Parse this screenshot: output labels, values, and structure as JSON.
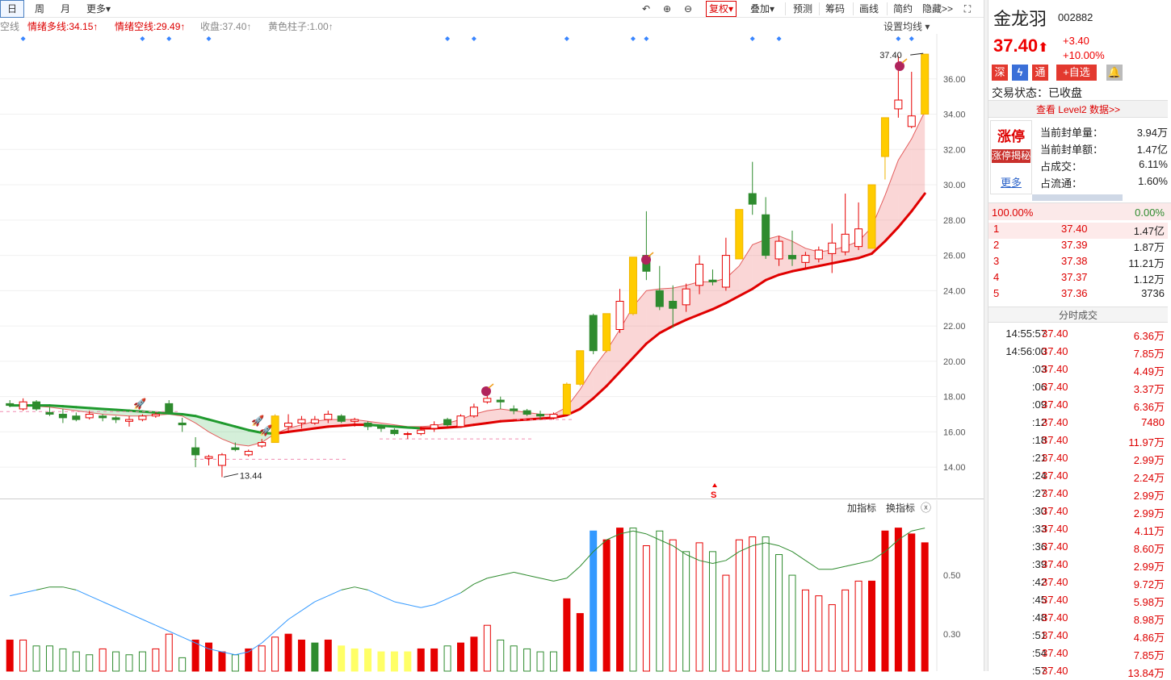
{
  "toolbar": {
    "periods": [
      {
        "label": "日",
        "active": true
      },
      {
        "label": "周"
      },
      {
        "label": "月"
      },
      {
        "label": "更多▾"
      }
    ],
    "fuquan": "复权▾",
    "overlay": "叠加▾",
    "tools": [
      "预测",
      "筹码",
      "画线",
      "简约",
      "隐藏>>"
    ]
  },
  "legend": {
    "items": [
      {
        "text": "空线",
        "color": "gray"
      },
      {
        "text": "情绪多线:34.15↑",
        "color": "red"
      },
      {
        "text": "情绪空线:29.49↑",
        "color": "red"
      },
      {
        "text": "收盘:37.40↑",
        "color": "gray"
      },
      {
        "text": "黄色柱子:1.00↑",
        "color": "gray"
      }
    ],
    "settings": "设置均线 ▾"
  },
  "chart_data": {
    "type": "candlestick",
    "y_axis_ticks": [
      "14.00",
      "16.00",
      "18.00",
      "20.00",
      "22.00",
      "24.00",
      "26.00",
      "28.00",
      "30.00",
      "32.00",
      "34.00",
      "36.00"
    ],
    "ylim": [
      12.5,
      38.0
    ],
    "candles": [
      {
        "o": 17.6,
        "h": 17.8,
        "l": 17.4,
        "c": 17.5
      },
      {
        "o": 17.3,
        "h": 17.9,
        "l": 17.2,
        "c": 17.7
      },
      {
        "o": 17.7,
        "h": 17.8,
        "l": 17.2,
        "c": 17.3
      },
      {
        "o": 17.1,
        "h": 17.4,
        "l": 16.9,
        "c": 17.0
      },
      {
        "o": 17.0,
        "h": 17.3,
        "l": 16.5,
        "c": 16.8
      },
      {
        "o": 16.9,
        "h": 17.1,
        "l": 16.6,
        "c": 16.7
      },
      {
        "o": 16.8,
        "h": 17.2,
        "l": 16.7,
        "c": 17.0
      },
      {
        "o": 16.9,
        "h": 17.0,
        "l": 16.6,
        "c": 16.8
      },
      {
        "o": 16.8,
        "h": 16.9,
        "l": 16.5,
        "c": 16.7
      },
      {
        "o": 16.6,
        "h": 16.9,
        "l": 16.3,
        "c": 16.7
      },
      {
        "o": 16.7,
        "h": 17.0,
        "l": 16.6,
        "c": 16.9
      },
      {
        "o": 16.9,
        "h": 17.1,
        "l": 16.8,
        "c": 17.0
      },
      {
        "o": 17.6,
        "h": 17.8,
        "l": 17.1,
        "c": 17.1
      },
      {
        "o": 16.5,
        "h": 16.8,
        "l": 16.0,
        "c": 16.4
      },
      {
        "o": 15.1,
        "h": 15.7,
        "l": 14.0,
        "c": 14.7
      },
      {
        "o": 14.5,
        "h": 14.7,
        "l": 14.1,
        "c": 14.6
      },
      {
        "o": 14.1,
        "h": 14.8,
        "l": 13.44,
        "c": 14.7
      },
      {
        "o": 15.1,
        "h": 15.4,
        "l": 14.9,
        "c": 15.0
      },
      {
        "o": 14.7,
        "h": 15.0,
        "l": 14.6,
        "c": 14.9
      },
      {
        "o": 15.2,
        "h": 15.6,
        "l": 15.1,
        "c": 15.4
      },
      {
        "o": 15.4,
        "h": 17.0,
        "l": 15.4,
        "c": 16.9
      },
      {
        "o": 16.3,
        "h": 17.0,
        "l": 16.0,
        "c": 16.5
      },
      {
        "o": 16.5,
        "h": 16.9,
        "l": 16.2,
        "c": 16.7
      },
      {
        "o": 16.5,
        "h": 16.9,
        "l": 16.4,
        "c": 16.7
      },
      {
        "o": 16.7,
        "h": 17.2,
        "l": 16.5,
        "c": 17.0
      },
      {
        "o": 16.9,
        "h": 17.0,
        "l": 16.5,
        "c": 16.6
      },
      {
        "o": 16.6,
        "h": 16.8,
        "l": 16.3,
        "c": 16.7
      },
      {
        "o": 16.5,
        "h": 16.6,
        "l": 16.1,
        "c": 16.3
      },
      {
        "o": 16.3,
        "h": 16.4,
        "l": 16.0,
        "c": 16.2
      },
      {
        "o": 16.1,
        "h": 16.2,
        "l": 15.8,
        "c": 15.9
      },
      {
        "o": 15.9,
        "h": 16.0,
        "l": 15.6,
        "c": 15.9
      },
      {
        "o": 15.9,
        "h": 16.3,
        "l": 15.8,
        "c": 16.1
      },
      {
        "o": 16.2,
        "h": 16.6,
        "l": 16.0,
        "c": 16.4
      },
      {
        "o": 16.7,
        "h": 16.8,
        "l": 16.3,
        "c": 16.4
      },
      {
        "o": 16.3,
        "h": 17.0,
        "l": 16.3,
        "c": 16.9
      },
      {
        "o": 16.9,
        "h": 17.6,
        "l": 16.8,
        "c": 17.4
      },
      {
        "o": 17.7,
        "h": 18.4,
        "l": 17.6,
        "c": 17.9
      },
      {
        "o": 17.8,
        "h": 18.0,
        "l": 17.3,
        "c": 17.7
      },
      {
        "o": 17.3,
        "h": 17.5,
        "l": 17.0,
        "c": 17.2
      },
      {
        "o": 17.2,
        "h": 17.3,
        "l": 16.9,
        "c": 17.0
      },
      {
        "o": 17.0,
        "h": 17.2,
        "l": 16.7,
        "c": 16.9
      },
      {
        "o": 16.8,
        "h": 17.1,
        "l": 16.7,
        "c": 17.0
      },
      {
        "o": 17.0,
        "h": 18.8,
        "l": 17.0,
        "c": 18.7
      },
      {
        "o": 18.7,
        "h": 20.6,
        "l": 18.6,
        "c": 20.6
      },
      {
        "o": 22.6,
        "h": 22.7,
        "l": 20.4,
        "c": 20.6
      },
      {
        "o": 20.6,
        "h": 22.7,
        "l": 20.5,
        "c": 22.7
      },
      {
        "o": 21.8,
        "h": 24.1,
        "l": 21.6,
        "c": 23.4
      },
      {
        "o": 22.7,
        "h": 25.9,
        "l": 22.6,
        "c": 25.9
      },
      {
        "o": 26.0,
        "h": 28.5,
        "l": 24.6,
        "c": 25.1
      },
      {
        "o": 24.0,
        "h": 25.4,
        "l": 22.9,
        "c": 23.1
      },
      {
        "o": 23.4,
        "h": 24.3,
        "l": 21.9,
        "c": 23.0
      },
      {
        "o": 23.2,
        "h": 24.4,
        "l": 22.8,
        "c": 24.1
      },
      {
        "o": 24.3,
        "h": 26.0,
        "l": 23.8,
        "c": 25.5
      },
      {
        "o": 24.6,
        "h": 25.2,
        "l": 24.3,
        "c": 24.5
      },
      {
        "o": 24.2,
        "h": 27.0,
        "l": 24.0,
        "c": 26.0
      },
      {
        "o": 25.8,
        "h": 28.6,
        "l": 25.8,
        "c": 28.6
      },
      {
        "o": 29.5,
        "h": 31.3,
        "l": 28.3,
        "c": 28.9
      },
      {
        "o": 28.3,
        "h": 29.3,
        "l": 25.8,
        "c": 26.0
      },
      {
        "o": 25.8,
        "h": 27.1,
        "l": 25.4,
        "c": 26.8
      },
      {
        "o": 26.0,
        "h": 27.4,
        "l": 25.4,
        "c": 25.8
      },
      {
        "o": 25.6,
        "h": 26.2,
        "l": 25.3,
        "c": 26.0
      },
      {
        "o": 25.8,
        "h": 26.5,
        "l": 25.6,
        "c": 26.3
      },
      {
        "o": 26.1,
        "h": 27.8,
        "l": 25.0,
        "c": 26.7
      },
      {
        "o": 26.2,
        "h": 29.5,
        "l": 26.0,
        "c": 27.2
      },
      {
        "o": 26.5,
        "h": 29.0,
        "l": 26.3,
        "c": 27.5
      },
      {
        "o": 26.4,
        "h": 30.0,
        "l": 26.4,
        "c": 30.0
      },
      {
        "o": 31.6,
        "h": 33.8,
        "l": 30.3,
        "c": 33.8
      },
      {
        "o": 34.3,
        "h": 37.3,
        "l": 33.8,
        "c": 34.8
      },
      {
        "o": 33.3,
        "h": 36.4,
        "l": 33.2,
        "c": 33.9
      },
      {
        "o": 34.0,
        "h": 37.4,
        "l": 34.0,
        "c": 37.4
      }
    ],
    "yellow_bar_indices": [
      20,
      42,
      43,
      45,
      47,
      55,
      65,
      66,
      69
    ],
    "ma_line": [
      17.5,
      17.5,
      17.5,
      17.5,
      17.45,
      17.4,
      17.35,
      17.3,
      17.25,
      17.2,
      17.15,
      17.1,
      17.05,
      17.0,
      16.9,
      16.7,
      16.5,
      16.3,
      16.1,
      15.95,
      15.9,
      16.0,
      16.1,
      16.2,
      16.3,
      16.35,
      16.4,
      16.4,
      16.35,
      16.3,
      16.25,
      16.2,
      16.2,
      16.25,
      16.3,
      16.4,
      16.5,
      16.6,
      16.65,
      16.7,
      16.75,
      16.8,
      16.95,
      17.3,
      17.9,
      18.6,
      19.4,
      20.2,
      21.0,
      21.6,
      22.0,
      22.35,
      22.65,
      22.95,
      23.3,
      23.7,
      24.1,
      24.6,
      24.9,
      25.1,
      25.25,
      25.4,
      25.55,
      25.7,
      25.85,
      26.1,
      26.8,
      27.6,
      28.5,
      29.5
    ],
    "emotion_line": [
      17.5,
      17.5,
      17.45,
      17.4,
      17.3,
      17.2,
      17.1,
      17.0,
      16.95,
      16.9,
      16.9,
      16.95,
      17.0,
      16.9,
      16.5,
      16.0,
      15.6,
      15.3,
      15.2,
      15.4,
      15.9,
      16.2,
      16.4,
      16.6,
      16.7,
      16.7,
      16.7,
      16.6,
      16.5,
      16.4,
      16.3,
      16.3,
      16.35,
      16.5,
      16.7,
      17.0,
      17.2,
      17.3,
      17.2,
      17.1,
      17.0,
      17.0,
      17.4,
      18.4,
      19.6,
      20.6,
      21.8,
      23.1,
      24.0,
      24.1,
      24.15,
      24.3,
      24.5,
      24.5,
      24.7,
      25.4,
      26.6,
      26.9,
      27.1,
      26.8,
      26.4,
      26.2,
      26.3,
      26.5,
      26.8,
      27.6,
      29.4,
      31.4,
      32.6,
      34.15
    ],
    "annotations": {
      "high_label": "37.40",
      "low_label": "13.44",
      "s_marker": "S"
    },
    "volume_axis_ticks": [
      "0.50",
      "0.30"
    ],
    "volume": [
      0.28,
      0.28,
      0.26,
      0.26,
      0.25,
      0.24,
      0.23,
      0.25,
      0.24,
      0.23,
      0.24,
      0.25,
      0.3,
      0.22,
      0.28,
      0.27,
      0.24,
      0.23,
      0.25,
      0.26,
      0.29,
      0.3,
      0.28,
      0.27,
      0.28,
      0.26,
      0.25,
      0.25,
      0.24,
      0.24,
      0.24,
      0.25,
      0.25,
      0.26,
      0.27,
      0.29,
      0.33,
      0.28,
      0.26,
      0.25,
      0.24,
      0.24,
      0.42,
      0.37,
      0.65,
      0.62,
      0.66,
      0.66,
      0.6,
      0.65,
      0.62,
      0.58,
      0.61,
      0.58,
      0.5,
      0.62,
      0.63,
      0.63,
      0.57,
      0.5,
      0.45,
      0.43,
      0.4,
      0.45,
      0.48,
      0.48,
      0.65,
      0.66,
      0.64,
      0.61
    ],
    "volume_colors": [
      "r",
      "r",
      "g",
      "g",
      "g",
      "g",
      "g",
      "r",
      "g",
      "g",
      "g",
      "r",
      "r",
      "g",
      "r",
      "r",
      "r",
      "g",
      "r",
      "r",
      "r",
      "r",
      "r",
      "g",
      "r",
      "y",
      "y",
      "y",
      "y",
      "y",
      "y",
      "r",
      "r",
      "g",
      "r",
      "r",
      "r",
      "g",
      "g",
      "g",
      "g",
      "g",
      "r",
      "r",
      "b",
      "r",
      "r",
      "g",
      "r",
      "g",
      "r",
      "g",
      "r",
      "g",
      "r",
      "r",
      "r",
      "g",
      "g",
      "g",
      "r",
      "r",
      "r",
      "r",
      "r",
      "r",
      "r",
      "r",
      "r",
      "r"
    ],
    "volume_filled": [
      true,
      false,
      false,
      false,
      false,
      false,
      false,
      false,
      false,
      false,
      false,
      false,
      false,
      false,
      true,
      true,
      true,
      false,
      true,
      false,
      false,
      true,
      true,
      true,
      true,
      true,
      true,
      true,
      true,
      true,
      true,
      true,
      true,
      false,
      true,
      true,
      false,
      false,
      false,
      false,
      false,
      false,
      true,
      true,
      true,
      true,
      true,
      false,
      false,
      false,
      false,
      false,
      false,
      false,
      false,
      false,
      false,
      false,
      false,
      false,
      false,
      false,
      false,
      false,
      false,
      true,
      true,
      true,
      true,
      true
    ],
    "volume_line": [
      0.43,
      0.44,
      0.45,
      0.46,
      0.46,
      0.45,
      0.43,
      0.41,
      0.39,
      0.37,
      0.35,
      0.33,
      0.31,
      0.29,
      0.27,
      0.25,
      0.24,
      0.23,
      0.24,
      0.27,
      0.31,
      0.35,
      0.38,
      0.41,
      0.43,
      0.45,
      0.46,
      0.45,
      0.43,
      0.41,
      0.4,
      0.39,
      0.4,
      0.42,
      0.44,
      0.47,
      0.49,
      0.5,
      0.51,
      0.5,
      0.49,
      0.48,
      0.49,
      0.53,
      0.58,
      0.62,
      0.64,
      0.65,
      0.64,
      0.62,
      0.6,
      0.57,
      0.55,
      0.54,
      0.55,
      0.58,
      0.6,
      0.61,
      0.6,
      0.58,
      0.55,
      0.52,
      0.52,
      0.53,
      0.54,
      0.55,
      0.58,
      0.62,
      0.65,
      0.66
    ],
    "indicator_buttons": {
      "add": "加指标",
      "switch": "换指标",
      "close": "ⓧ"
    }
  },
  "panel": {
    "name": "金龙羽",
    "code": "002882",
    "price": "37.40",
    "arrow": "⬆",
    "change": "+3.40",
    "pct": "+10.00%",
    "badges": {
      "shen": "深",
      "flash": "ϟ",
      "tong": "通",
      "fav": "+自选"
    },
    "status": "交易状态：已收盘",
    "level2": "查看 Level2 数据>>",
    "limit": {
      "title": "涨停",
      "reveal": "涨停揭秘",
      "more": "更多"
    },
    "limit_stats": [
      {
        "k": "当前封单量：",
        "v": "3.94万"
      },
      {
        "k": "当前封单额：",
        "v": "1.47亿"
      },
      {
        "k": "占成交：",
        "v": "6.11%"
      },
      {
        "k": "占流通：",
        "v": "1.60%"
      }
    ],
    "ratio": {
      "left": "100.00%",
      "right": "0.00%"
    },
    "book": [
      {
        "lvl": "1",
        "price": "37.40",
        "vol": "1.47亿"
      },
      {
        "lvl": "2",
        "price": "37.39",
        "vol": "1.87万"
      },
      {
        "lvl": "3",
        "price": "37.38",
        "vol": "11.21万"
      },
      {
        "lvl": "4",
        "price": "37.37",
        "vol": "1.12万"
      },
      {
        "lvl": "5",
        "price": "37.36",
        "vol": "3736"
      }
    ],
    "ticks_title": "分时成交",
    "ticks": [
      {
        "t": "14:55:57",
        "p": "37.40",
        "v": "6.36万"
      },
      {
        "t": "14:56:00",
        "p": "37.40",
        "v": "7.85万"
      },
      {
        "t": ":03",
        "p": "37.40",
        "v": "4.49万"
      },
      {
        "t": ":06",
        "p": "37.40",
        "v": "3.37万"
      },
      {
        "t": ":09",
        "p": "37.40",
        "v": "6.36万"
      },
      {
        "t": ":12",
        "p": "37.40",
        "v": "7480"
      },
      {
        "t": ":18",
        "p": "37.40",
        "v": "11.97万"
      },
      {
        "t": ":21",
        "p": "37.40",
        "v": "2.99万"
      },
      {
        "t": ":24",
        "p": "37.40",
        "v": "2.24万"
      },
      {
        "t": ":27",
        "p": "37.40",
        "v": "2.99万"
      },
      {
        "t": ":30",
        "p": "37.40",
        "v": "2.99万"
      },
      {
        "t": ":33",
        "p": "37.40",
        "v": "4.11万"
      },
      {
        "t": ":36",
        "p": "37.40",
        "v": "8.60万"
      },
      {
        "t": ":39",
        "p": "37.40",
        "v": "2.99万"
      },
      {
        "t": ":42",
        "p": "37.40",
        "v": "9.72万"
      },
      {
        "t": ":45",
        "p": "37.40",
        "v": "5.98万"
      },
      {
        "t": ":48",
        "p": "37.40",
        "v": "8.98万"
      },
      {
        "t": ":51",
        "p": "37.40",
        "v": "4.86万"
      },
      {
        "t": ":54",
        "p": "37.40",
        "v": "7.85万"
      },
      {
        "t": ":57",
        "p": "37.40",
        "v": "13.84万"
      }
    ]
  },
  "colors": {
    "up": "#e60000",
    "down": "#2e8b2e",
    "yellow": "#ffcc00",
    "blue": "#3399ff",
    "volyellow": "#ffff66"
  }
}
